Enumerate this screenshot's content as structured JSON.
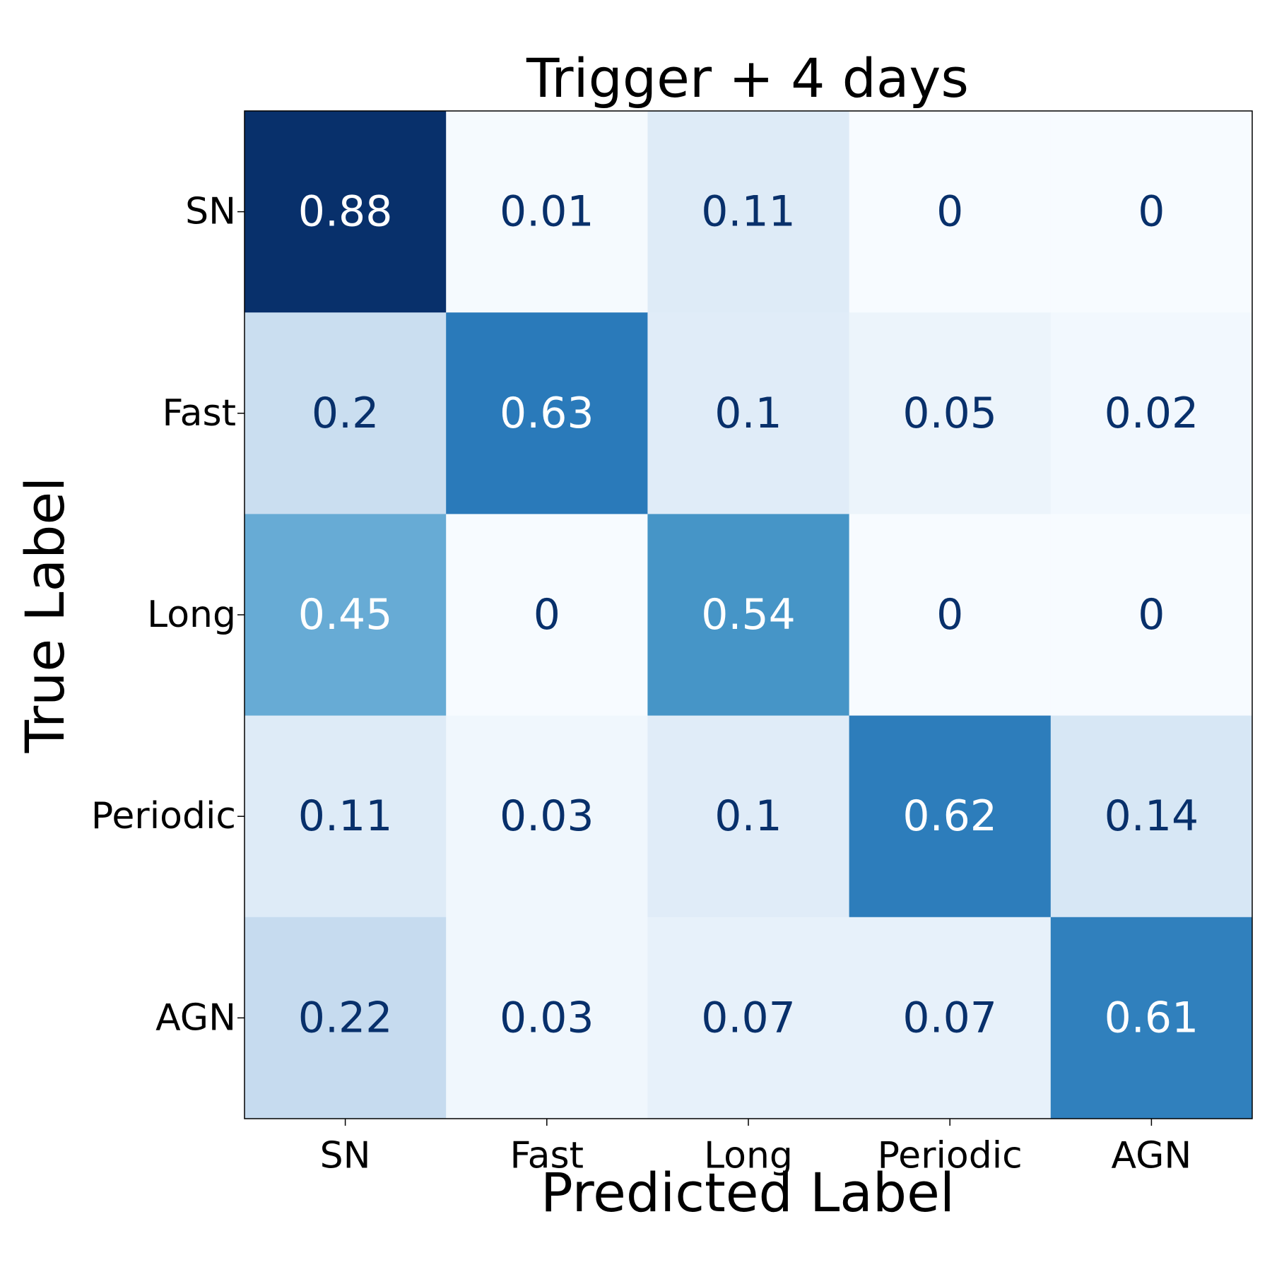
{
  "chart_data": {
    "type": "heatmap",
    "title": "Trigger + 4 days",
    "xlabel": "Predicted Label",
    "ylabel": "True Label",
    "x_categories": [
      "SN",
      "Fast",
      "Long",
      "Periodic",
      "AGN"
    ],
    "y_categories": [
      "SN",
      "Fast",
      "Long",
      "Periodic",
      "AGN"
    ],
    "values": [
      [
        0.88,
        0.01,
        0.11,
        0,
        0
      ],
      [
        0.2,
        0.63,
        0.1,
        0.05,
        0.02
      ],
      [
        0.45,
        0,
        0.54,
        0,
        0
      ],
      [
        0.11,
        0.03,
        0.1,
        0.62,
        0.14
      ],
      [
        0.22,
        0.03,
        0.07,
        0.07,
        0.61
      ]
    ],
    "colormap": "Blues",
    "value_range": [
      0,
      0.88
    ],
    "grid": false,
    "colors": {
      "dark_text": "#08306b",
      "light_text": "#ffffff",
      "axis": "#000000"
    }
  }
}
